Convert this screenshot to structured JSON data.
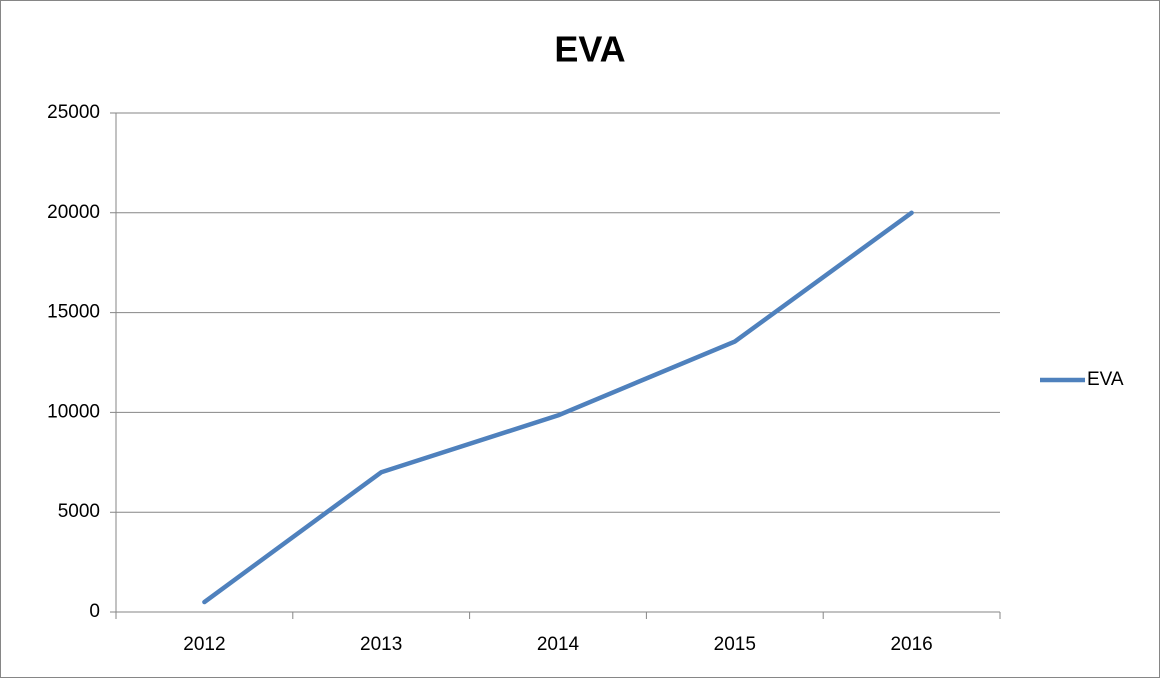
{
  "chart_data": {
    "type": "line",
    "title": "EVA",
    "categories": [
      "2012",
      "2013",
      "2014",
      "2015",
      "2016"
    ],
    "series": [
      {
        "name": "EVA",
        "color": "#4f81bd",
        "values": [
          500,
          7000,
          9850,
          13550,
          20000
        ]
      }
    ],
    "ylim": [
      0,
      25000
    ],
    "yticks": [
      0,
      5000,
      10000,
      15000,
      20000,
      25000
    ],
    "grid": true,
    "legend": "right"
  }
}
